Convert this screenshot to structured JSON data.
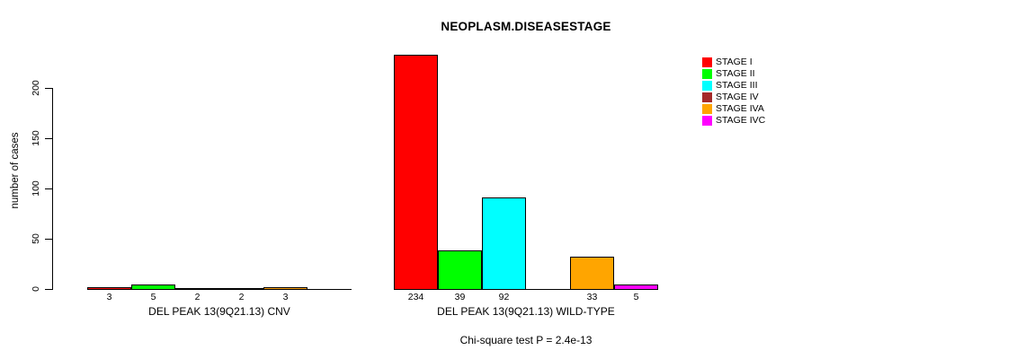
{
  "chart_data": {
    "type": "bar",
    "title": "NEOPLASM.DISEASESTAGE",
    "ylabel": "number of cases",
    "xlabel": "",
    "ylim": [
      0,
      200
    ],
    "yticks": [
      0,
      50,
      100,
      150,
      200
    ],
    "grid": false,
    "legend_position": "top-right",
    "legend": [
      {
        "label": "STAGE I",
        "color": "#ff0000"
      },
      {
        "label": "STAGE II",
        "color": "#00ff00"
      },
      {
        "label": "STAGE III",
        "color": "#00ffff"
      },
      {
        "label": "STAGE IV",
        "color": "#a52a2a"
      },
      {
        "label": "STAGE IVA",
        "color": "#ffa500"
      },
      {
        "label": "STAGE IVC",
        "color": "#ff00ff"
      }
    ],
    "categories": [
      "STAGE I",
      "STAGE II",
      "STAGE III",
      "STAGE IV",
      "STAGE IVA",
      "STAGE IVC"
    ],
    "groups": [
      {
        "label": "DEL PEAK 13(9Q21.13) CNV",
        "values": [
          3,
          5,
          2,
          2,
          3,
          0
        ]
      },
      {
        "label": "DEL PEAK 13(9Q21.13) WILD-TYPE",
        "values": [
          234,
          39,
          92,
          0,
          33,
          5
        ]
      }
    ],
    "bar_value_labels_shown_for_nonzero_only": true,
    "footnote": "Chi-square test P = 2.4e-13"
  }
}
